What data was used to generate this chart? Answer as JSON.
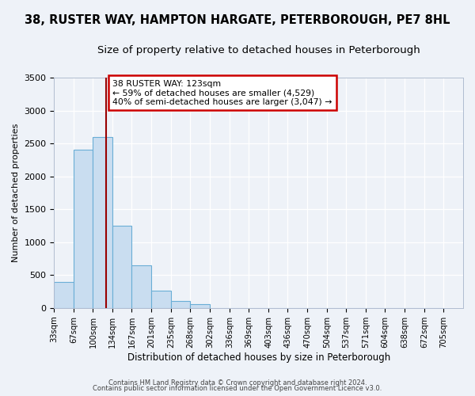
{
  "title1": "38, RUSTER WAY, HAMPTON HARGATE, PETERBOROUGH, PE7 8HL",
  "title2": "Size of property relative to detached houses in Peterborough",
  "xlabel": "Distribution of detached houses by size in Peterborough",
  "ylabel": "Number of detached properties",
  "categories": [
    "33sqm",
    "67sqm",
    "100sqm",
    "134sqm",
    "167sqm",
    "201sqm",
    "235sqm",
    "268sqm",
    "302sqm",
    "336sqm",
    "369sqm",
    "403sqm",
    "436sqm",
    "470sqm",
    "504sqm",
    "537sqm",
    "571sqm",
    "604sqm",
    "638sqm",
    "672sqm",
    "705sqm"
  ],
  "bar_color": "#c9ddf0",
  "bar_edge_color": "#6aaed6",
  "vline_color": "#990000",
  "ylim": [
    0,
    3500
  ],
  "annotation_text": "38 RUSTER WAY: 123sqm\n← 59% of detached houses are smaller (4,529)\n40% of semi-detached houses are larger (3,047) →",
  "annotation_box_edge_color": "#cc0000",
  "annotation_box_face_color": "#ffffff",
  "footer1": "Contains HM Land Registry data © Crown copyright and database right 2024.",
  "footer2": "Contains public sector information licensed under the Open Government Licence v3.0.",
  "background_color": "#eef2f8",
  "grid_color": "#ffffff",
  "title1_fontsize": 10.5,
  "title2_fontsize": 9.5,
  "bins": [
    33,
    67,
    100,
    134,
    167,
    201,
    235,
    268,
    302,
    336,
    369,
    403,
    436,
    470,
    504,
    537,
    571,
    604,
    638,
    672,
    705
  ],
  "heights": [
    400,
    2400,
    2600,
    1250,
    650,
    260,
    110,
    60,
    0,
    0,
    0,
    0,
    0,
    0,
    0,
    0,
    0,
    0,
    0,
    0
  ],
  "vline_x": 123
}
